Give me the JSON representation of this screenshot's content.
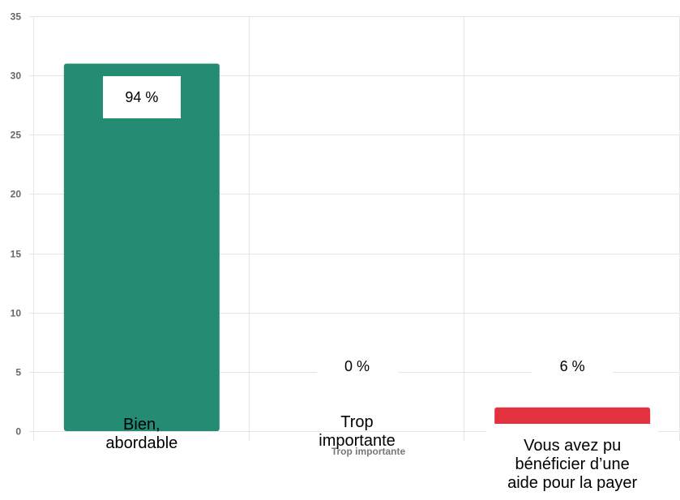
{
  "chart_data": {
    "type": "bar",
    "categories": [
      "Bien,\nabordable",
      "Trop\nimportante",
      "Vous avez pu\nbénéficier d’une\naide pour la payer"
    ],
    "axis_category_label": "Trop importante",
    "values": [
      31,
      0,
      2
    ],
    "value_labels": [
      "94 %",
      "0 %",
      "6 %"
    ],
    "bar_colors": [
      "#248c73",
      "#248c73",
      "#e3313f"
    ],
    "ylim": [
      0,
      35
    ],
    "yticks": [
      0,
      5,
      10,
      15,
      20,
      25,
      30,
      35
    ],
    "grid": true,
    "title": "",
    "xlabel": "",
    "ylabel": ""
  }
}
